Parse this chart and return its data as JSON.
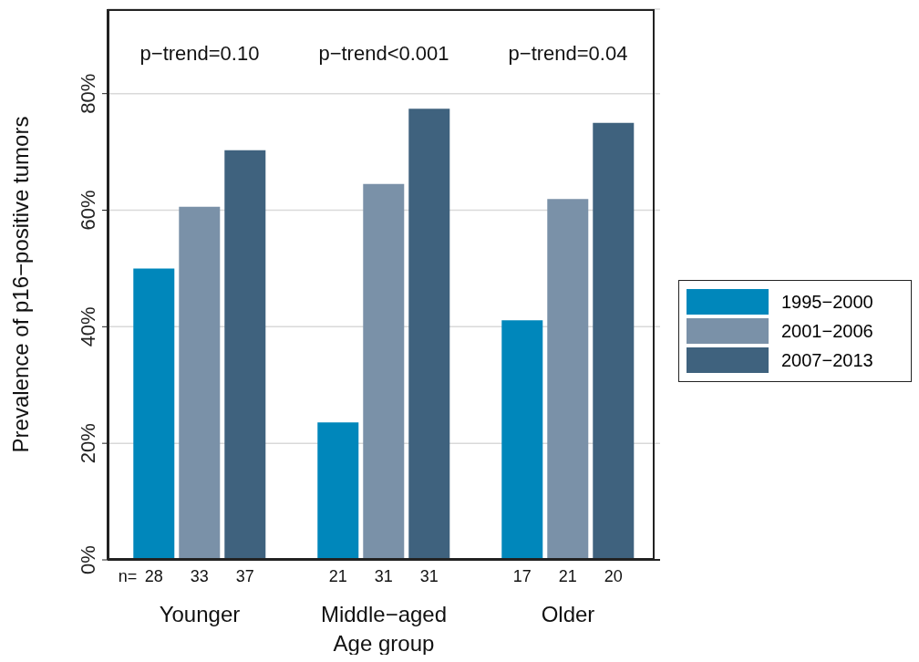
{
  "chart_data": {
    "type": "bar",
    "xlabel": "Age group",
    "ylabel": "Prevalence of p16−positive tumors",
    "categories": [
      "Younger",
      "Middle−aged",
      "Older"
    ],
    "series": [
      {
        "name": "1995−2000",
        "color": "#0087bb",
        "values": [
          50,
          23.6,
          41.1
        ]
      },
      {
        "name": "2001−2006",
        "color": "#7a91a8",
        "values": [
          60.6,
          64.5,
          61.9
        ]
      },
      {
        "name": "2007−2013",
        "color": "#3f627e",
        "values": [
          70.3,
          77.4,
          75.0
        ]
      }
    ],
    "ylim": [
      0,
      94.5
    ],
    "yticks": [
      {
        "value": 0,
        "label": "0%"
      },
      {
        "value": 20,
        "label": "20%"
      },
      {
        "value": 40,
        "label": "40%"
      },
      {
        "value": 60,
        "label": "60%"
      },
      {
        "value": 80,
        "label": "80%"
      }
    ],
    "grid": "y",
    "legend": "right",
    "annotations": [
      "p−trend=0.10",
      "p−trend<0.001",
      "p−trend=0.04",
      "n=",
      "28",
      "33",
      "37",
      "21",
      "31",
      "31",
      "17",
      "21",
      "20"
    ]
  }
}
